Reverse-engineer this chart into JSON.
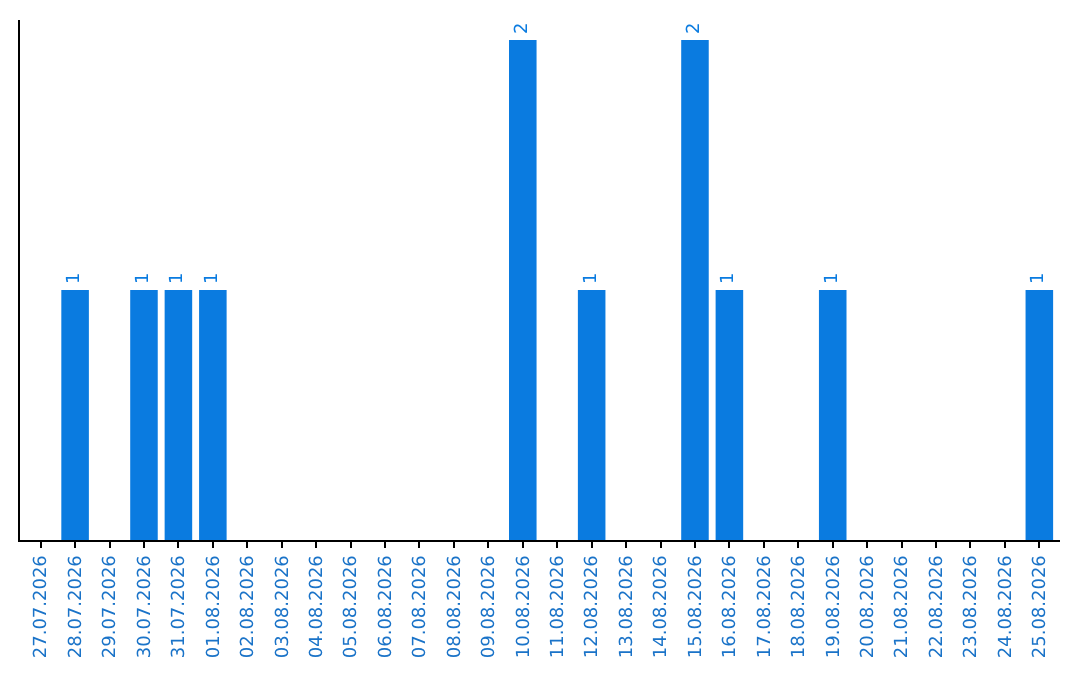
{
  "chart_data": {
    "type": "bar",
    "categories": [
      "27.07.2026",
      "28.07.2026",
      "29.07.2026",
      "30.07.2026",
      "31.07.2026",
      "01.08.2026",
      "02.08.2026",
      "03.08.2026",
      "04.08.2026",
      "05.08.2026",
      "06.08.2026",
      "07.08.2026",
      "08.08.2026",
      "09.08.2026",
      "10.08.2026",
      "11.08.2026",
      "12.08.2026",
      "13.08.2026",
      "14.08.2026",
      "15.08.2026",
      "16.08.2026",
      "17.08.2026",
      "18.08.2026",
      "19.08.2026",
      "20.08.2026",
      "21.08.2026",
      "22.08.2026",
      "23.08.2026",
      "24.08.2026",
      "25.08.2026"
    ],
    "values": [
      0,
      1,
      0,
      1,
      1,
      1,
      0,
      0,
      0,
      0,
      0,
      0,
      0,
      0,
      2,
      0,
      1,
      0,
      0,
      2,
      1,
      0,
      0,
      1,
      0,
      0,
      0,
      0,
      0,
      1
    ],
    "value_labels": [
      null,
      "1",
      null,
      "1",
      "1",
      "1",
      null,
      null,
      null,
      null,
      null,
      null,
      null,
      null,
      "2",
      null,
      "1",
      null,
      null,
      "2",
      "1",
      null,
      null,
      "1",
      null,
      null,
      null,
      null,
      null,
      "1"
    ],
    "color": "#0a7be0",
    "ylim": [
      0,
      2.08
    ],
    "tick_labels": "x"
  }
}
